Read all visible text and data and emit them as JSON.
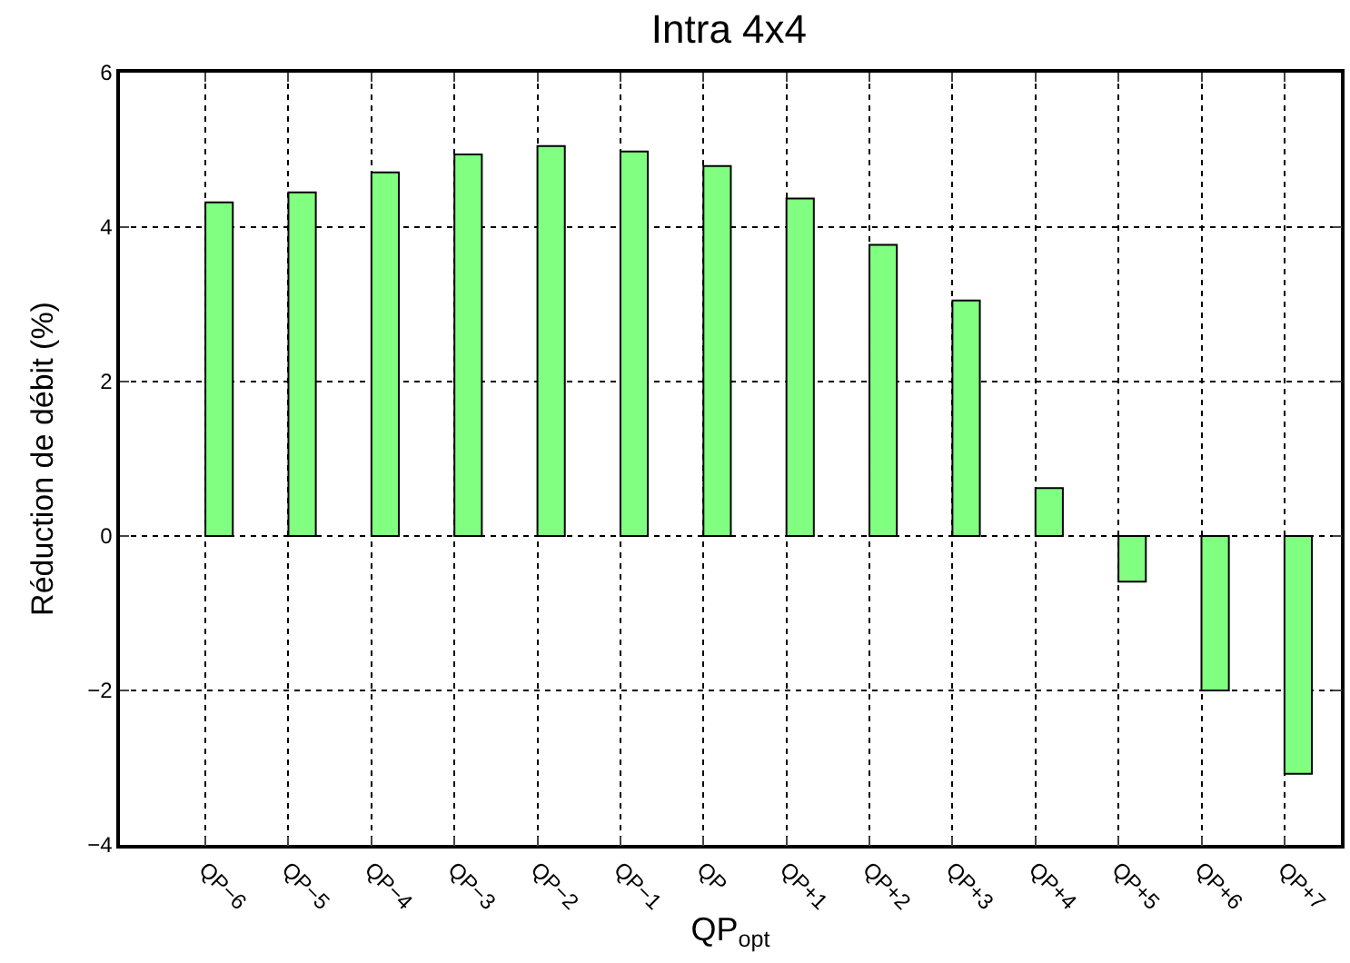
{
  "chart_data": {
    "type": "bar",
    "title": "Intra 4x4",
    "xlabel": "QP$_{opt}$",
    "ylabel": "Réduction de débit (%)",
    "categories": [
      "QP−6",
      "QP−5",
      "QP−4",
      "QP−3",
      "QP−2",
      "QP−1",
      "QP",
      "QP+1",
      "QP+2",
      "QP+3",
      "QP+4",
      "QP+5",
      "QP+6",
      "QP+7"
    ],
    "values": [
      4.32,
      4.45,
      4.71,
      4.94,
      5.05,
      4.98,
      4.79,
      4.37,
      3.77,
      3.05,
      0.62,
      -0.59,
      -2.0,
      -3.08
    ],
    "color": "#80ff80",
    "ylim": [
      -4,
      6
    ],
    "yticks": [
      {
        "value": -4,
        "label": "−4"
      },
      {
        "value": -2,
        "label": "−2"
      },
      0,
      2,
      4,
      6
    ],
    "grid": true
  }
}
